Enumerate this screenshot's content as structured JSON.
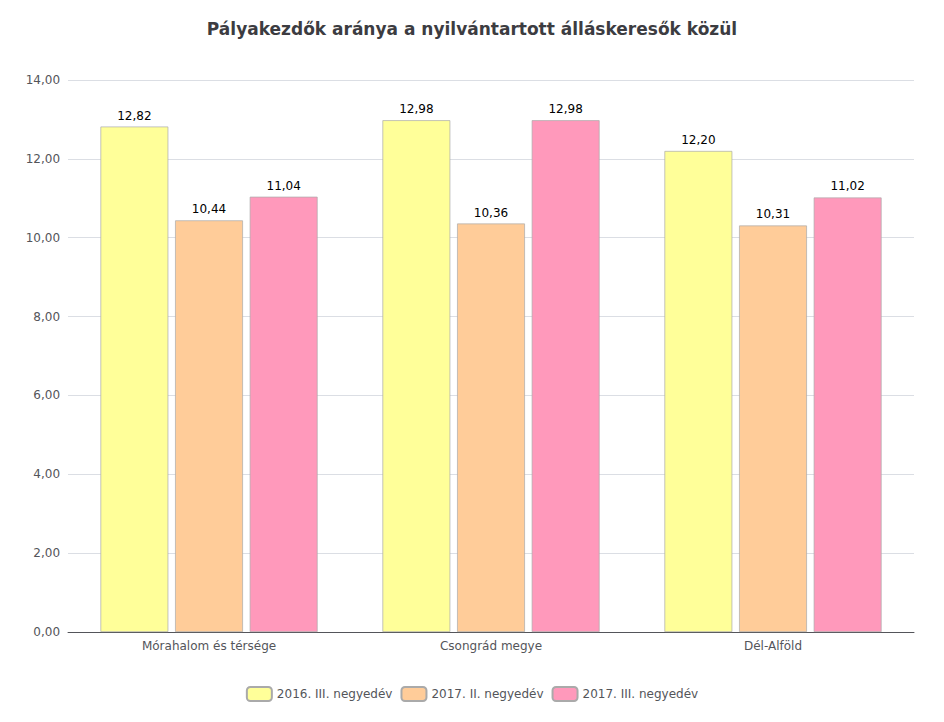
{
  "chart_data": {
    "type": "bar",
    "title": "Pályakezdők aránya a nyilvántartott álláskeresők közül",
    "categories": [
      "Mórahalom és térsége",
      "Csongrád megye",
      "Dél-Alföld"
    ],
    "series": [
      {
        "name": "2016. III. negyedév",
        "color": "#FFFF99",
        "values": [
          12.82,
          12.98,
          12.2
        ],
        "value_labels": [
          "12,82",
          "12,98",
          "12,20"
        ]
      },
      {
        "name": "2017. II. negyedév",
        "color": "#FFCC99",
        "values": [
          10.44,
          10.36,
          10.31
        ],
        "value_labels": [
          "10,44",
          "10,36",
          "10,31"
        ]
      },
      {
        "name": "2017. III. negyedév",
        "color": "#FF99BB",
        "values": [
          11.04,
          12.98,
          11.02
        ],
        "value_labels": [
          "11,04",
          "12,98",
          "11,02"
        ]
      }
    ],
    "ylim": [
      0,
      14.0
    ],
    "yticks": [
      {
        "value": 0.0,
        "label": "0,00"
      },
      {
        "value": 2.0,
        "label": "2,00"
      },
      {
        "value": 4.0,
        "label": "4,00"
      },
      {
        "value": 6.0,
        "label": "6,00"
      },
      {
        "value": 8.0,
        "label": "8,00"
      },
      {
        "value": 10.0,
        "label": "10,00"
      },
      {
        "value": 12.0,
        "label": "12,00"
      },
      {
        "value": 14.0,
        "label": "14,00"
      }
    ],
    "grid": true,
    "legend": "bottom",
    "data_labels": true
  }
}
